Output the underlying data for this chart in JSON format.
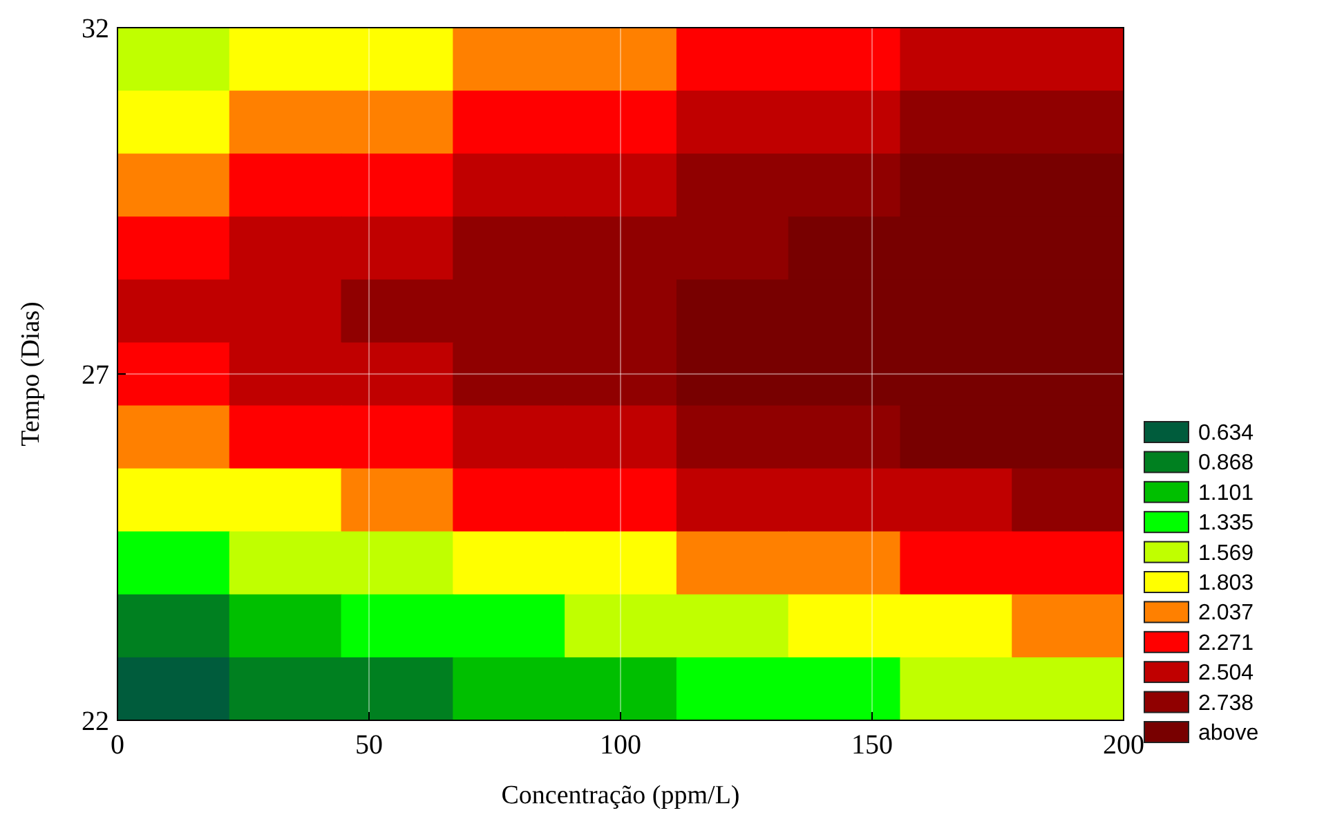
{
  "chart_data": {
    "type": "heatmap",
    "xlabel": "Concentração (ppm/L)",
    "ylabel": "Tempo (Dias)",
    "xlim": [
      0,
      200
    ],
    "xticks": [
      0,
      50,
      100,
      150,
      200
    ],
    "ylim": [
      22,
      32
    ],
    "yticks": [
      22,
      27,
      32
    ],
    "grid": true,
    "cticks": [
      0.634,
      0.868,
      1.101,
      1.335,
      1.569,
      1.803,
      2.037,
      2.271,
      2.504,
      2.738,
      {
        "value": 2.972,
        "label": "above"
      }
    ],
    "colors": [
      "#005c3c",
      "#008020",
      "#00bf00",
      "#00ff00",
      "#c0ff00",
      "#ffff00",
      "#ff8000",
      "#ff0000",
      "#c00000",
      "#900000",
      "#780000"
    ],
    "cells": [
      [
        1.452,
        1.686,
        1.686,
        1.92,
        1.92,
        2.154,
        2.154,
        2.388,
        2.388
      ],
      [
        1.686,
        1.92,
        1.92,
        2.154,
        2.154,
        2.388,
        2.388,
        2.621,
        2.621
      ],
      [
        1.92,
        2.154,
        2.154,
        2.388,
        2.388,
        2.621,
        2.621,
        2.855,
        2.855
      ],
      [
        2.154,
        2.388,
        2.388,
        2.621,
        2.621,
        2.621,
        2.855,
        2.855,
        2.855
      ],
      [
        2.388,
        2.388,
        2.621,
        2.621,
        2.621,
        2.855,
        2.855,
        2.855,
        2.855
      ],
      [
        2.154,
        2.388,
        2.388,
        2.621,
        2.621,
        2.855,
        2.855,
        2.855,
        2.855
      ],
      [
        1.92,
        2.154,
        2.154,
        2.388,
        2.388,
        2.621,
        2.621,
        2.855,
        2.855
      ],
      [
        1.686,
        1.686,
        1.92,
        2.154,
        2.154,
        2.388,
        2.388,
        2.388,
        2.621
      ],
      [
        1.218,
        1.452,
        1.452,
        1.686,
        1.686,
        1.92,
        1.92,
        2.154,
        2.154
      ],
      [
        0.751,
        0.985,
        1.218,
        1.218,
        1.452,
        1.452,
        1.686,
        1.686,
        1.92
      ],
      [
        0.517,
        0.751,
        0.751,
        0.985,
        0.985,
        1.218,
        1.218,
        1.452,
        1.452
      ]
    ]
  }
}
